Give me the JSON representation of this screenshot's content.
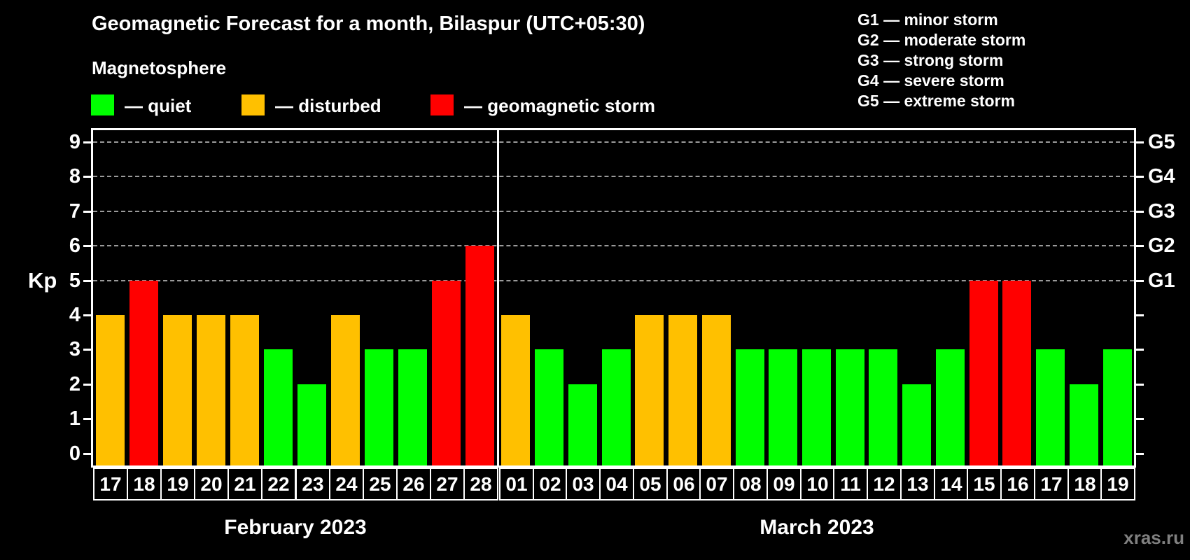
{
  "header": {
    "title": "Geomagnetic Forecast for a month, Bilaspur (UTC+05:30)",
    "subtitle": "Magnetosphere"
  },
  "legend": [
    {
      "name": "quiet",
      "label": "— quiet",
      "color": "#00ff00"
    },
    {
      "name": "disturbed",
      "label": "— disturbed",
      "color": "#ffc000"
    },
    {
      "name": "storm",
      "label": "— geomagnetic storm",
      "color": "#ff0000"
    }
  ],
  "g_scale_legend": [
    "G1 — minor storm",
    "G2 — moderate storm",
    "G3 — strong storm",
    "G4 — severe storm",
    "G5 — extreme storm"
  ],
  "watermark": "xras.ru",
  "chart_data": {
    "type": "bar",
    "title": "Geomagnetic Forecast for a month, Bilaspur (UTC+05:30)",
    "ylabel": "Kp",
    "ylim": [
      0,
      9
    ],
    "yticks": [
      0,
      1,
      2,
      3,
      4,
      5,
      6,
      7,
      8,
      9
    ],
    "gridlines_at": [
      5,
      6,
      7,
      8,
      9
    ],
    "legend_position": "top",
    "right_axis_labels": [
      {
        "label": "G1",
        "kp": 5
      },
      {
        "label": "G2",
        "kp": 6
      },
      {
        "label": "G3",
        "kp": 7
      },
      {
        "label": "G4",
        "kp": 8
      },
      {
        "label": "G5",
        "kp": 9
      }
    ],
    "status_colors": {
      "quiet": "#00ff00",
      "disturbed": "#ffc000",
      "storm": "#ff0000"
    },
    "months": [
      {
        "label": "February 2023",
        "days": [
          {
            "day": "17",
            "kp": 4,
            "status": "disturbed"
          },
          {
            "day": "18",
            "kp": 5,
            "status": "storm"
          },
          {
            "day": "19",
            "kp": 4,
            "status": "disturbed"
          },
          {
            "day": "20",
            "kp": 4,
            "status": "disturbed"
          },
          {
            "day": "21",
            "kp": 4,
            "status": "disturbed"
          },
          {
            "day": "22",
            "kp": 3,
            "status": "quiet"
          },
          {
            "day": "23",
            "kp": 2,
            "status": "quiet"
          },
          {
            "day": "24",
            "kp": 4,
            "status": "disturbed"
          },
          {
            "day": "25",
            "kp": 3,
            "status": "quiet"
          },
          {
            "day": "26",
            "kp": 3,
            "status": "quiet"
          },
          {
            "day": "27",
            "kp": 5,
            "status": "storm"
          },
          {
            "day": "28",
            "kp": 6,
            "status": "storm"
          }
        ]
      },
      {
        "label": "March 2023",
        "days": [
          {
            "day": "01",
            "kp": 4,
            "status": "disturbed"
          },
          {
            "day": "02",
            "kp": 3,
            "status": "quiet"
          },
          {
            "day": "03",
            "kp": 2,
            "status": "quiet"
          },
          {
            "day": "04",
            "kp": 3,
            "status": "quiet"
          },
          {
            "day": "05",
            "kp": 4,
            "status": "disturbed"
          },
          {
            "day": "06",
            "kp": 4,
            "status": "disturbed"
          },
          {
            "day": "07",
            "kp": 4,
            "status": "disturbed"
          },
          {
            "day": "08",
            "kp": 3,
            "status": "quiet"
          },
          {
            "day": "09",
            "kp": 3,
            "status": "quiet"
          },
          {
            "day": "10",
            "kp": 3,
            "status": "quiet"
          },
          {
            "day": "11",
            "kp": 3,
            "status": "quiet"
          },
          {
            "day": "12",
            "kp": 3,
            "status": "quiet"
          },
          {
            "day": "13",
            "kp": 2,
            "status": "quiet"
          },
          {
            "day": "14",
            "kp": 3,
            "status": "quiet"
          },
          {
            "day": "15",
            "kp": 5,
            "status": "storm"
          },
          {
            "day": "16",
            "kp": 5,
            "status": "storm"
          },
          {
            "day": "17",
            "kp": 3,
            "status": "quiet"
          },
          {
            "day": "18",
            "kp": 2,
            "status": "quiet"
          },
          {
            "day": "19",
            "kp": 3,
            "status": "quiet"
          }
        ]
      }
    ]
  }
}
